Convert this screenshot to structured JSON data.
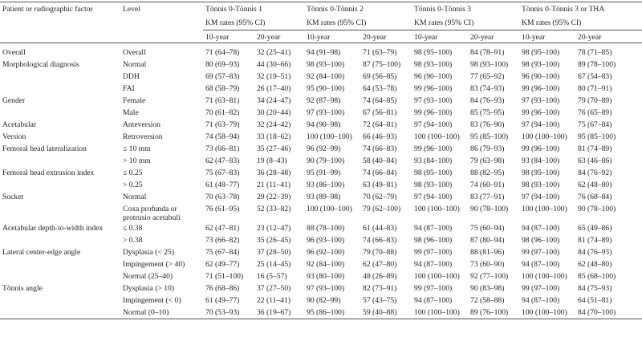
{
  "header": {
    "factor": "Patient or radiographic factor",
    "level": "Level",
    "groups": [
      "Tönnis 0-Tönnis 1",
      "Tönnis 0-Tönnis 2",
      "Tönnis 0-Tönnis 3",
      "Tönnis 0-Tönnis 3 or THA"
    ],
    "subheader": "KM rates (95% CI)",
    "periods": [
      "10-year",
      "20-year"
    ]
  },
  "rows": [
    {
      "factor": "Overall",
      "level": "Overall",
      "values": [
        "71 (64–78)",
        "32 (25–41)",
        "94 (91–98)",
        "71 (63–79)",
        "98 (95–100)",
        "84 (78–91)",
        "98 (95–100)",
        "78 (71–85)"
      ]
    },
    {
      "factor": "Morphological diagnosis",
      "level": "Normal",
      "values": [
        "80 (69–93)",
        "44 (30–66)",
        "98 (93–100)",
        "87 (75–100)",
        "98 (93–100)",
        "98 (93–100)",
        "98 (93–100)",
        "89 (78–100)"
      ]
    },
    {
      "level": "DDH",
      "values": [
        "69 (57–83)",
        "32 (19–51)",
        "92 (84–100)",
        "69 (56–85)",
        "96 (90–100)",
        "77 (65–92)",
        "96 (90–100)",
        "67 (54–83)"
      ]
    },
    {
      "level": "FAI",
      "values": [
        "68 (58–79)",
        "26 (17–40)",
        "95 (90–100)",
        "64 (53–78)",
        "99 (96–100)",
        "83 (74–93)",
        "99 (96–100)",
        "80 (71–91)"
      ]
    },
    {
      "factor": "Gender",
      "level": "Female",
      "values": [
        "71 (63–81)",
        "34 (24–47)",
        "92 (87–98)",
        "74 (64–85)",
        "97 (93–100)",
        "84 (76–93)",
        "97 (93–100)",
        "79 (70–89)"
      ]
    },
    {
      "level": "Male",
      "values": [
        "70 (61–82)",
        "30 (20–44)",
        "97 (93–100)",
        "67 (56–81)",
        "99 (96–100)",
        "85 (75–95)",
        "99 (96–100)",
        "76 (65–89)"
      ]
    },
    {
      "factor": "Acetabular",
      "level": "Anteversion",
      "values": [
        "71 (63–79)",
        "32 (24–42)",
        "94 (90–98)",
        "72 (64–81)",
        "97 (94–100)",
        "83 (76–90)",
        "97 (94–100)",
        "75 (67–84)"
      ]
    },
    {
      "factor": "Version",
      "level": "Retroversion",
      "values": [
        "74 (58–94)",
        "33 (18–62)",
        "100 (100–100)",
        "66 (46–93)",
        "100 (100–100)",
        "95 (85–100)",
        "100 (100–100)",
        "95 (85–100)"
      ]
    },
    {
      "factor": "Femoral head lateralization",
      "level": "≤ 10 mm",
      "values": [
        "73 (66–81)",
        "35 (27–46)",
        "96 (92–99)",
        "74 (66–83)",
        "99 (96–100)",
        "86 (79–93)",
        "99 (96–100)",
        "81 (74–89)"
      ]
    },
    {
      "level": "> 10 mm",
      "values": [
        "62 (47–83)",
        "19 (8–43)",
        "90 (79–100)",
        "58 (40–84)",
        "93 (84–100)",
        "79 (63–98)",
        "93 (84–100)",
        "63 (46–86)"
      ]
    },
    {
      "factor": "Femoral head extrusion index",
      "level": "≤ 0.25",
      "values": [
        "75 (67–83)",
        "36 (28–48)",
        "95 (91–99)",
        "74 (66–84)",
        "98 (95–100)",
        "88 (82–95)",
        "98 (95–100)",
        "84 (76–92)"
      ]
    },
    {
      "level": "> 0.25",
      "values": [
        "61 (48–77)",
        "21 (11–41)",
        "93 (86–100)",
        "63 (49–81)",
        "98 (93–100)",
        "74 (60–91)",
        "98 (93–100)",
        "62 (48–80)"
      ]
    },
    {
      "factor": "Socket",
      "level": "Normal",
      "values": [
        "70 (63–78)",
        "29 (22–39)",
        "93 (89–98)",
        "70 (62–79)",
        "97 (94–100)",
        "83 (77–91)",
        "97 (94–100)",
        "76 (68–84)"
      ]
    },
    {
      "level": "Coxa profunda or protrusio acetabuli",
      "values": [
        "76 (61–95)",
        "52 (33–82)",
        "100 (100–100)",
        "79 (62–100)",
        "100 (100–100)",
        "90 (78–100)",
        "100 (100–100)",
        "90 (78–100)"
      ]
    },
    {
      "factor": "Acetabular depth-to-width index",
      "level": "≤ 0.38",
      "values": [
        "62 (47–81)",
        "23 (12–47)",
        "88 (78–100)",
        "61 (44–83)",
        "94 (87–100)",
        "75 (60–94)",
        "94 (87–100)",
        "65 (49–86)"
      ]
    },
    {
      "level": "> 0.38",
      "values": [
        "73 (66–82)",
        "35 (26–45)",
        "96 (93–100)",
        "74 (66–83)",
        "98 (96–100)",
        "87 (80–94)",
        "98 (96–100)",
        "81 (74–89)"
      ]
    },
    {
      "factor": "Lateral center-edge angle",
      "level": "Dysplasia (< 25)",
      "values": [
        "75 (67–84)",
        "37 (28–50)",
        "96 (92–100)",
        "79 (70–88)",
        "99 (97–100)",
        "88 (81–96)",
        "99 (97–100)",
        "84 (76–93)"
      ]
    },
    {
      "level": "Impingement (> 40)",
      "values": [
        "62 (49–77)",
        "25 (14–45)",
        "92 (84–100)",
        "62 (47–80)",
        "94 (87–100)",
        "73 (60–90)",
        "94 (87–100)",
        "62 (48–80)"
      ]
    },
    {
      "level": "Normal (25–40)",
      "values": [
        "71 (51–100)",
        "16 (5–57)",
        "93 (80–100)",
        "48 (26–89)",
        "100 (100–100)",
        "92 (77–100)",
        "100 (100–100)",
        "85 (68–100)"
      ]
    },
    {
      "factor": "Tönnis angle",
      "level": "Dysplasia (> 10)",
      "values": [
        "76 (68–86)",
        "37 (27–50)",
        "97 (93–100)",
        "82 (73–91)",
        "99 (97–100)",
        "90 (83–98)",
        "99 (97–100)",
        "84 (75–93)"
      ]
    },
    {
      "level": "Impingement (< 0)",
      "values": [
        "61 (49–77)",
        "22 (11–41)",
        "90 (82–99)",
        "57 (43–75)",
        "94 (87–100)",
        "72 (58–88)",
        "94 (87–100)",
        "64 (51–81)"
      ]
    },
    {
      "level": "Normal (0–10)",
      "values": [
        "70 (53–93)",
        "36 (19–67)",
        "95 (86–100)",
        "59 (40–88)",
        "100 (100–100)",
        "89 (76–100)",
        "100 (100–100)",
        "84 (70–100)"
      ]
    }
  ]
}
